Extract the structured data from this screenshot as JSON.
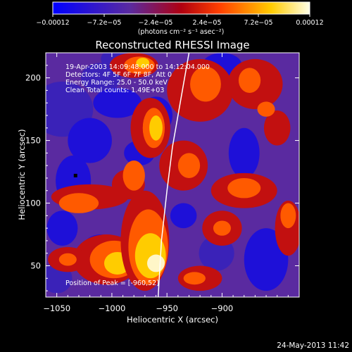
{
  "chart_data": {
    "type": "heatmap",
    "title": "Reconstructed RHESSI Image",
    "xlabel": "Heliocentric X (arcsec)",
    "ylabel": "Heliocentric Y (arcsec)",
    "xlim": [
      -1060,
      -830
    ],
    "ylim": [
      25,
      220
    ],
    "x_ticks": [
      -1050,
      -1000,
      -950,
      -900
    ],
    "x_tick_labels": [
      "−1050",
      "−1000",
      "−950",
      "−900"
    ],
    "y_ticks": [
      50,
      100,
      150,
      200
    ],
    "y_tick_labels": [
      "50",
      "100",
      "150",
      "200"
    ],
    "colorbar": {
      "range": [
        -0.00012,
        0.00012
      ],
      "ticks": [
        -0.00012,
        -7.2e-05,
        -2.4e-05,
        2.4e-05,
        7.2e-05,
        0.00012
      ],
      "tick_labels": [
        "−0.00012",
        "−7.2e−05",
        "−2.4e−05",
        "2.4e−05",
        "7.2e−05",
        "0.00012"
      ],
      "unit_label": "(photons cm⁻² s⁻¹ asec⁻²)",
      "colors": [
        "#0000ff",
        "#5a2aa0",
        "#c01010",
        "#ff6a00",
        "#ffd000",
        "#ffffe0"
      ]
    },
    "annotations": [
      "19-Apr-2003 14:09:48.000 to 14:12:04.000",
      "Detectors: 4F 5F 6F 7F 8F, Att 0",
      "Energy Range: 25.0 - 50.0 keV",
      "Clean    Total counts: 1.49E+03"
    ],
    "peak_label": "Position of Peak = [-960,52]",
    "peak_position": [
      -960,
      52
    ],
    "min_marker": [
      -1033,
      122
    ],
    "limb_curve": [
      [
        -958,
        25
      ],
      [
        -955,
        70
      ],
      [
        -950,
        110
      ],
      [
        -945,
        145
      ],
      [
        -938,
        180
      ],
      [
        -930,
        220
      ]
    ]
  },
  "footer": {
    "timestamp": "24-May-2013 11:42"
  }
}
